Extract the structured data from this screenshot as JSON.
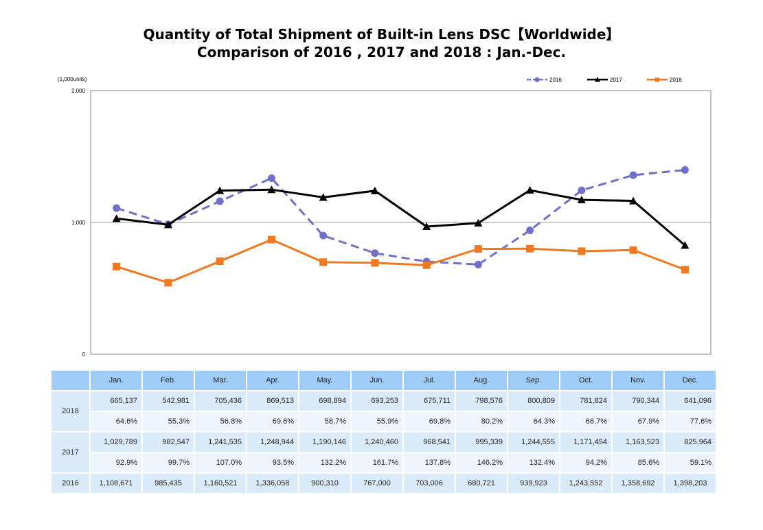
{
  "title_line1": "Quantity of Total Shipment of Built-in Lens DSC【Worldwide】",
  "title_line2": "Comparison of 2016 , 2017 and 2018 : Jan.-Dec.",
  "chart_data": {
    "type": "line",
    "ylabel": "(1,000units)",
    "ylim": [
      0,
      2000
    ],
    "yticks": [
      "0",
      "1,000",
      "2,000"
    ],
    "grid": "horizontal line at 1,000",
    "legend_position": "top-right",
    "categories": [
      "Jan.",
      "Feb.",
      "Mar.",
      "Apr.",
      "May.",
      "Jun.",
      "Jul.",
      "Aug.",
      "Sep.",
      "Oct.",
      "Nov.",
      "Dec."
    ],
    "series": [
      {
        "name": "2016",
        "color": "#7070c8",
        "style": "dashed-circle",
        "values": [
          1108.671,
          985.435,
          1160.521,
          1336.058,
          900.31,
          767.0,
          703.006,
          680.721,
          939.923,
          1243.552,
          1358.692,
          1398.203
        ]
      },
      {
        "name": "2017",
        "color": "#000000",
        "style": "solid-triangle",
        "values": [
          1029.789,
          982.547,
          1241.535,
          1248.944,
          1190.146,
          1240.46,
          968.541,
          995.339,
          1244.555,
          1171.454,
          1163.523,
          825.964
        ]
      },
      {
        "name": "2018",
        "color": "#f07820",
        "style": "solid-square",
        "values": [
          665.137,
          542.981,
          705.436,
          869.513,
          698.894,
          693.253,
          675.711,
          798.576,
          800.809,
          781.824,
          790.344,
          641.096
        ]
      }
    ]
  },
  "table": {
    "headers": [
      "Jan.",
      "Feb.",
      "Mar.",
      "Apr.",
      "May.",
      "Jun.",
      "Jul.",
      "Aug.",
      "Sep.",
      "Oct.",
      "Nov.",
      "Dec."
    ],
    "rows": [
      {
        "year": "2018",
        "units": [
          "665,137",
          "542,981",
          "705,436",
          "869,513",
          "698,894",
          "693,253",
          "675,711",
          "798,576",
          "800,809",
          "781,824",
          "790,344",
          "641,096"
        ],
        "ratio": [
          "64.6%",
          "55.3%",
          "56.8%",
          "69.6%",
          "58.7%",
          "55.9%",
          "69.8%",
          "80.2%",
          "64.3%",
          "66.7%",
          "67.9%",
          "77.6%"
        ]
      },
      {
        "year": "2017",
        "units": [
          "1,029,789",
          "982,547",
          "1,241,535",
          "1,248,944",
          "1,190,146",
          "1,240,460",
          "968,541",
          "995,339",
          "1,244,555",
          "1,171,454",
          "1,163,523",
          "825,964"
        ],
        "ratio": [
          "92.9%",
          "99.7%",
          "107.0%",
          "93.5%",
          "132.2%",
          "161.7%",
          "137.8%",
          "146.2%",
          "132.4%",
          "94.2%",
          "85.6%",
          "59.1%"
        ]
      },
      {
        "year": "2016",
        "units": [
          "1,108,671",
          "985,435",
          "1,160,521",
          "1,336,058",
          "900,310",
          "767,000",
          "703,006",
          "680,721",
          "939,923",
          "1,243,552",
          "1,358,692",
          "1,398,203"
        ]
      }
    ]
  }
}
